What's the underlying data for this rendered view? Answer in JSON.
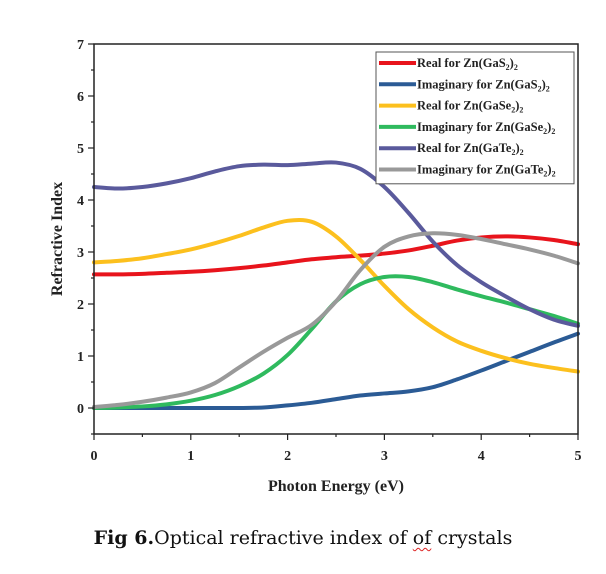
{
  "chart_data": {
    "type": "line",
    "title": "",
    "xlabel": "Photon Energy (eV)",
    "ylabel": "Refractive Index",
    "xlim": [
      0,
      5
    ],
    "ylim": [
      -0.5,
      7
    ],
    "xticks": [
      0,
      1,
      2,
      3,
      4,
      5
    ],
    "yticks": [
      0,
      1,
      2,
      3,
      4,
      5,
      6,
      7
    ],
    "grid": false,
    "legend_position": "top-right",
    "x": [
      0,
      0.25,
      0.5,
      0.75,
      1.0,
      1.25,
      1.5,
      1.75,
      2.0,
      2.25,
      2.5,
      2.75,
      3.0,
      3.25,
      3.5,
      3.75,
      4.0,
      4.25,
      4.5,
      4.75,
      5.0
    ],
    "series": [
      {
        "name": "Real for Zn(GaS2)2",
        "label_parts": [
          "Real for Zn(GaS",
          "2",
          ")",
          "2"
        ],
        "color": "#e8141c",
        "values": [
          2.57,
          2.57,
          2.58,
          2.6,
          2.62,
          2.65,
          2.69,
          2.74,
          2.8,
          2.86,
          2.9,
          2.93,
          2.97,
          3.03,
          3.12,
          3.22,
          3.28,
          3.3,
          3.28,
          3.23,
          3.15
        ]
      },
      {
        "name": "Imaginary for Zn(GaS2)2",
        "label_parts": [
          "Imaginary for Zn(GaS",
          "2",
          ")",
          "2"
        ],
        "color": "#2b5b95",
        "values": [
          0.0,
          0.0,
          0.0,
          0.0,
          0.0,
          0.0,
          0.0,
          0.01,
          0.05,
          0.1,
          0.17,
          0.24,
          0.28,
          0.32,
          0.4,
          0.55,
          0.72,
          0.9,
          1.08,
          1.26,
          1.43
        ]
      },
      {
        "name": "Real for Zn(GaSe2)2",
        "label_parts": [
          "Real for Zn(GaSe",
          "2",
          ")",
          "2"
        ],
        "color": "#fcc01e",
        "values": [
          2.8,
          2.83,
          2.88,
          2.96,
          3.05,
          3.17,
          3.31,
          3.47,
          3.6,
          3.58,
          3.3,
          2.85,
          2.35,
          1.9,
          1.55,
          1.28,
          1.1,
          0.96,
          0.85,
          0.77,
          0.7
        ]
      },
      {
        "name": "Imaginary for Zn(GaSe2)2",
        "label_parts": [
          "Imaginary for Zn(GaSe",
          "2",
          ")",
          "2"
        ],
        "color": "#2fba5e",
        "values": [
          0.0,
          0.01,
          0.03,
          0.07,
          0.14,
          0.25,
          0.42,
          0.66,
          1.02,
          1.52,
          2.05,
          2.38,
          2.52,
          2.52,
          2.42,
          2.28,
          2.15,
          2.03,
          1.9,
          1.77,
          1.62
        ]
      },
      {
        "name": "Real for Zn(GaTe2)2",
        "label_parts": [
          "Real for Zn(GaTe",
          "2",
          ")",
          "2"
        ],
        "color": "#5a5a9c",
        "values": [
          4.25,
          4.22,
          4.25,
          4.32,
          4.42,
          4.55,
          4.65,
          4.68,
          4.67,
          4.7,
          4.72,
          4.6,
          4.25,
          3.75,
          3.2,
          2.75,
          2.42,
          2.15,
          1.9,
          1.7,
          1.58
        ]
      },
      {
        "name": "Imaginary for Zn(GaTe2)2",
        "label_parts": [
          "Imaginary for Zn(GaTe",
          "2",
          ")",
          "2"
        ],
        "color": "#999999",
        "values": [
          0.02,
          0.06,
          0.12,
          0.2,
          0.3,
          0.48,
          0.78,
          1.08,
          1.35,
          1.6,
          2.05,
          2.65,
          3.1,
          3.3,
          3.36,
          3.33,
          3.25,
          3.15,
          3.05,
          2.93,
          2.78
        ]
      }
    ]
  },
  "caption": {
    "bold": "Fig 6.",
    "text_before": "Optical refractive index of ",
    "underlined": "of",
    "text_after": " crystals"
  }
}
